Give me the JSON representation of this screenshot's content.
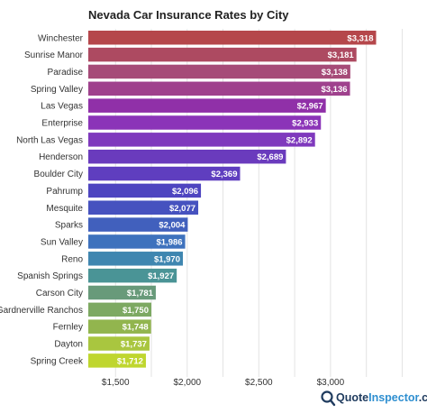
{
  "chart_data": {
    "type": "bar",
    "orientation": "horizontal",
    "title": "Nevada Car Insurance Rates by City",
    "categories": [
      "Winchester",
      "Sunrise Manor",
      "Paradise",
      "Spring Valley",
      "Las Vegas",
      "Enterprise",
      "North Las Vegas",
      "Henderson",
      "Boulder City",
      "Pahrump",
      "Mesquite",
      "Sparks",
      "Sun Valley",
      "Reno",
      "Spanish Springs",
      "Carson City",
      "Gardnerville Ranchos",
      "Fernley",
      "Dayton",
      "Spring Creek"
    ],
    "values": [
      3318,
      3181,
      3138,
      3136,
      2967,
      2933,
      2892,
      2689,
      2369,
      2096,
      2077,
      2004,
      1986,
      1970,
      1927,
      1781,
      1750,
      1748,
      1737,
      1712
    ],
    "data_labels": [
      "$3,318",
      "$3,181",
      "$3,138",
      "$3,136",
      "$2,967",
      "$2,933",
      "$2,892",
      "$2,689",
      "$2,369",
      "$2,096",
      "$2,077",
      "$2,004",
      "$1,986",
      "$1,970",
      "$1,927",
      "$1,781",
      "$1,750",
      "$1,748",
      "$1,737",
      "$1,712"
    ],
    "xlim": [
      1310,
      3560
    ],
    "xticks": [
      1500,
      2000,
      2500,
      3000
    ],
    "xtick_labels": [
      "$1,500",
      "$2,000",
      "$2,500",
      "$3,000"
    ],
    "grid": true,
    "bar_colors": [
      "#b5474b",
      "#ad4a61",
      "#a64b78",
      "#9f418d",
      "#9030a8",
      "#8b34b8",
      "#7f39bd",
      "#6a3bbd",
      "#5f3ebf",
      "#4e45c0",
      "#4652bf",
      "#4160bd",
      "#3e72bd",
      "#3f86b0",
      "#4a9496",
      "#689a7a",
      "#7da962",
      "#92b54e",
      "#a9c63f",
      "#bfd62e"
    ]
  },
  "branding": {
    "text_part1": "Quote",
    "text_part2": "Inspector",
    "text_part3": ".com",
    "color_dark": "#1f3b5e",
    "color_accent": "#2f8fd0"
  }
}
